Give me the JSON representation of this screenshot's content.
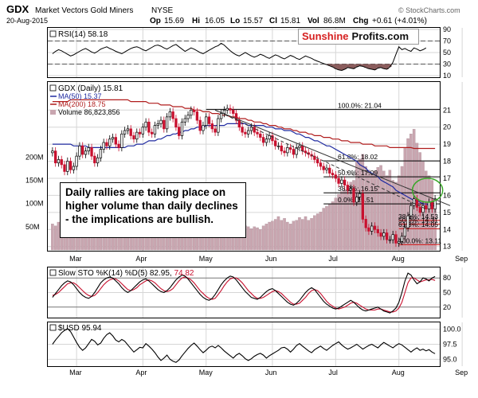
{
  "chart_data": {
    "type": "candlestick",
    "header": {
      "symbol": "GDX",
      "name": "Market Vectors Gold Miners",
      "exchange": "NYSE",
      "date": "20-Aug-2015",
      "open_label": "Op",
      "open": "15.69",
      "high_label": "Hi",
      "high": "16.05",
      "low_label": "Lo",
      "low": "15.57",
      "close_label": "Cl",
      "close": "15.81",
      "volume_label": "Vol",
      "volume": "86.8M",
      "change_label": "Chg",
      "change": "+0.61 (+4.01%)",
      "watermark": "© StockCharts.com"
    },
    "brand": {
      "part1": "Sunshine",
      "part2": "Profits.com"
    },
    "annotation": "Daily rallies are taking place on higher volume than daily declines - the implications are bullish.",
    "x_axis": {
      "months": [
        "Mar",
        "Apr",
        "May",
        "Jun",
        "Jul",
        "Aug",
        "Sep"
      ],
      "month_index": [
        8,
        30,
        51,
        73,
        94,
        115,
        136
      ]
    },
    "rsi": {
      "legend": "RSI(14) 58.18",
      "ylim": [
        10,
        90
      ],
      "ticks": [
        90,
        70,
        50,
        30,
        10
      ],
      "levels": [
        70,
        30
      ],
      "values": [
        48,
        52,
        55,
        53,
        50,
        47,
        44,
        46,
        49,
        52,
        55,
        57,
        54,
        51,
        49,
        52,
        56,
        58,
        60,
        57,
        55,
        52,
        50,
        48,
        51,
        54,
        57,
        59,
        60,
        58,
        55,
        53,
        56,
        59,
        62,
        63,
        61,
        58,
        56,
        59,
        62,
        64,
        60,
        56,
        52,
        55,
        58,
        56,
        53,
        50,
        48,
        51,
        54,
        57,
        60,
        62,
        66,
        63,
        58,
        53,
        49,
        46,
        44,
        47,
        50,
        47,
        44,
        42,
        44,
        47,
        45,
        42,
        40,
        43,
        46,
        44,
        41,
        39,
        42,
        45,
        43,
        40,
        38,
        41,
        44,
        42,
        40,
        37,
        35,
        33,
        31,
        29,
        27,
        25,
        22,
        20,
        19,
        21,
        24,
        23,
        22,
        25,
        27,
        26,
        24,
        22,
        21,
        20,
        23,
        24,
        22,
        21,
        25,
        33,
        47,
        60,
        55,
        57,
        54,
        52,
        58,
        56,
        53,
        55,
        58
      ]
    },
    "price": {
      "legend": "GDX (Daily) 15.81",
      "ma50_label": "MA(50) 15.37",
      "ma200_label": "MA(200) 18.75",
      "volume_label": "Volume 86,823,856",
      "ylim": [
        12.8,
        22.6
      ],
      "ticks": [
        21,
        20,
        19,
        18,
        17,
        16,
        15,
        14,
        13
      ],
      "volume_ticks": [
        {
          "v": 200,
          "label": "200M"
        },
        {
          "v": 150,
          "label": "150M"
        },
        {
          "v": 100,
          "label": "100M"
        },
        {
          "v": 50,
          "label": "50M"
        }
      ],
      "volume_max": 360,
      "close": [
        18.6,
        17.9,
        18.1,
        17.8,
        17.4,
        18.0,
        17.5,
        17.7,
        18.3,
        18.9,
        18.4,
        18.6,
        18.8,
        18.3,
        17.9,
        18.2,
        18.7,
        19.1,
        18.9,
        19.3,
        19.4,
        19.0,
        18.8,
        19.6,
        19.8,
        19.9,
        19.5,
        19.3,
        19.7,
        19.6,
        20.0,
        20.3,
        19.7,
        19.6,
        20.1,
        20.2,
        20.4,
        19.9,
        20.6,
        20.9,
        20.5,
        20.0,
        19.5,
        20.3,
        20.5,
        20.7,
        21.0,
        20.9,
        20.4,
        19.8,
        20.1,
        20.6,
        20.2,
        19.9,
        19.7,
        20.5,
        20.8,
        21.0,
        21.1,
        21.0,
        20.8,
        20.4,
        20.0,
        19.7,
        19.6,
        19.8,
        20.0,
        19.7,
        19.6,
        19.4,
        19.1,
        19.3,
        19.5,
        19.2,
        18.9,
        18.9,
        18.6,
        18.5,
        18.8,
        18.7,
        18.4,
        18.8,
        18.9,
        18.6,
        18.5,
        18.4,
        18.3,
        18.1,
        17.9,
        17.7,
        17.5,
        17.6,
        17.3,
        17.2,
        17.0,
        16.7,
        16.9,
        16.6,
        16.3,
        16.4,
        15.6,
        15.9,
        16.1,
        14.6,
        14.1,
        13.9,
        14.2,
        14.0,
        13.8,
        13.6,
        13.8,
        13.4,
        13.4,
        13.7,
        13.2,
        13.3,
        13.6,
        14.1,
        14.8,
        15.4,
        15.8,
        15.3,
        15.0,
        15.4,
        15.2,
        15.6,
        15.2,
        15.8
      ],
      "volume": [
        56,
        52,
        60,
        70,
        58,
        54,
        62,
        48,
        50,
        64,
        57,
        58,
        52,
        56,
        60,
        50,
        54,
        48,
        58,
        52,
        50,
        54,
        52,
        44,
        48,
        50,
        46,
        42,
        56,
        50,
        48,
        52,
        56,
        44,
        48,
        46,
        50,
        42,
        58,
        60,
        66,
        56,
        50,
        52,
        50,
        48,
        46,
        52,
        48,
        56,
        50,
        44,
        48,
        50,
        46,
        54,
        52,
        50,
        48,
        46,
        44,
        48,
        58,
        56,
        52,
        50,
        46,
        50,
        48,
        44,
        52,
        56,
        60,
        62,
        66,
        72,
        64,
        68,
        60,
        56,
        62,
        64,
        70,
        66,
        72,
        64,
        68,
        74,
        78,
        82,
        90,
        94,
        98,
        104,
        112,
        120,
        126,
        130,
        138,
        146,
        150,
        190,
        196,
        206,
        180,
        172,
        164,
        170,
        178,
        182,
        170,
        160,
        172,
        150,
        146,
        160,
        180,
        220,
        240,
        250,
        260,
        230,
        210,
        190,
        170,
        160,
        150,
        87
      ],
      "ma50": [
        19.0,
        19.0,
        19.0,
        19.0,
        19.0,
        19.0,
        19.0,
        18.9,
        18.9,
        18.9,
        18.9,
        18.9,
        18.8,
        18.8,
        18.8,
        18.8,
        18.8,
        18.8,
        18.8,
        18.8,
        18.8,
        18.8,
        18.8,
        18.8,
        18.8,
        18.9,
        18.9,
        18.9,
        19.0,
        19.0,
        19.0,
        19.1,
        19.2,
        19.2,
        19.2,
        19.3,
        19.3,
        19.4,
        19.5,
        19.5,
        19.6,
        19.6,
        19.7,
        19.7,
        19.8,
        19.8,
        19.9,
        19.9,
        20.0,
        20.0,
        20.0,
        20.1,
        20.1,
        20.1,
        20.1,
        20.1,
        20.1,
        20.1,
        20.2,
        20.2,
        20.2,
        20.2,
        20.2,
        20.2,
        20.2,
        20.1,
        20.1,
        20.1,
        20.1,
        20.1,
        20.1,
        20.0,
        20.0,
        20.0,
        19.9,
        19.9,
        19.9,
        19.8,
        19.8,
        19.8,
        19.7,
        19.6,
        19.6,
        19.5,
        19.4,
        19.4,
        19.3,
        19.2,
        19.2,
        19.1,
        19.0,
        18.9,
        18.9,
        18.8,
        18.7,
        18.6,
        18.5,
        18.4,
        18.3,
        18.2,
        18.1,
        18.0,
        17.8,
        17.7,
        17.6,
        17.4,
        17.3,
        17.2,
        17.1,
        16.9,
        16.8,
        16.7,
        16.6,
        16.5,
        16.3,
        16.2,
        16.1,
        16.0,
        15.9,
        15.8,
        15.7,
        15.7,
        15.6,
        15.5,
        15.5,
        15.4,
        15.4,
        15.37
      ],
      "ma200": [
        21.5,
        21.5,
        21.5,
        21.5,
        21.5,
        21.5,
        21.6,
        21.6,
        21.6,
        21.6,
        21.6,
        21.6,
        21.6,
        21.6,
        21.6,
        21.6,
        21.6,
        21.6,
        21.6,
        21.6,
        21.6,
        21.6,
        21.6,
        21.6,
        21.6,
        21.6,
        21.5,
        21.5,
        21.5,
        21.5,
        21.5,
        21.5,
        21.4,
        21.4,
        21.4,
        21.4,
        21.3,
        21.3,
        21.3,
        21.3,
        21.2,
        21.2,
        21.2,
        21.2,
        21.1,
        21.1,
        21.1,
        21.0,
        21.0,
        21.0,
        20.9,
        20.9,
        20.9,
        20.8,
        20.8,
        20.8,
        20.7,
        20.7,
        20.7,
        20.6,
        20.6,
        20.6,
        20.5,
        20.5,
        20.5,
        20.4,
        20.4,
        20.3,
        20.3,
        20.3,
        20.2,
        20.2,
        20.1,
        20.1,
        20.1,
        20.0,
        20.0,
        19.9,
        19.9,
        19.9,
        19.8,
        19.8,
        19.7,
        19.7,
        19.7,
        19.6,
        19.6,
        19.5,
        19.5,
        19.5,
        19.4,
        19.4,
        19.4,
        19.3,
        19.3,
        19.3,
        19.2,
        19.2,
        19.2,
        19.1,
        19.1,
        19.1,
        19.1,
        19.0,
        19.0,
        19.0,
        19.0,
        18.9,
        18.9,
        18.9,
        18.9,
        18.9,
        18.8,
        18.8,
        18.8,
        18.8,
        18.8,
        18.8,
        18.8,
        18.8,
        18.75,
        18.75,
        18.75,
        18.75,
        18.75,
        18.75,
        18.75,
        18.75
      ],
      "fib_levels": [
        {
          "value": 21.04,
          "label": "100.0%: 21.04",
          "x_start": 51
        },
        {
          "value": 18.02,
          "label": "61.8%: 18.02",
          "x_start": 90
        },
        {
          "value": 17.09,
          "label": "50.0%: 17.09",
          "x_start": 90
        },
        {
          "value": 16.15,
          "label": "38.2%: 16.15",
          "x_start": 90
        },
        {
          "value": 15.5,
          "label": "0.0%: 15.51",
          "x_start": 90
        },
        {
          "value": 14.53,
          "label": "38.2%: 14.53",
          "x_start": 115
        },
        {
          "value": 14.31,
          "label": "50.0%: 14.31",
          "x_start": 115
        },
        {
          "value": 14.05,
          "label": "61.8%: 14.05",
          "x_start": 115
        },
        {
          "value": 13.11,
          "label": "100.0%: 13.11",
          "x_start": 115
        }
      ],
      "trend_lines": [
        {
          "from": [
            54,
            21.0
          ],
          "to": [
            132,
            15.4
          ],
          "style": "solid"
        },
        {
          "from": [
            54,
            21.0
          ],
          "to": [
            124,
            15.2
          ],
          "style": "dashed"
        }
      ],
      "highlight_circle": {
        "x": 124.5,
        "y": 16.3
      }
    },
    "stoch": {
      "legend_prefix": "Slow STO %K(14) %D(5)",
      "k_label": "82.95",
      "d_label": "74.82",
      "ylim": [
        0,
        100
      ],
      "ticks": [
        80,
        50,
        20
      ],
      "k": [
        40,
        48,
        56,
        64,
        70,
        74,
        72,
        66,
        58,
        50,
        44,
        40,
        38,
        42,
        50,
        60,
        70,
        76,
        80,
        82,
        80,
        74,
        68,
        60,
        54,
        50,
        54,
        60,
        66,
        72,
        76,
        78,
        74,
        68,
        62,
        56,
        52,
        50,
        54,
        60,
        68,
        76,
        82,
        86,
        84,
        78,
        70,
        62,
        54,
        46,
        40,
        36,
        34,
        38,
        46,
        56,
        66,
        74,
        80,
        84,
        82,
        76,
        68,
        60,
        52,
        46,
        40,
        38,
        36,
        40,
        46,
        52,
        56,
        58,
        54,
        48,
        42,
        36,
        30,
        26,
        24,
        28,
        34,
        42,
        50,
        56,
        60,
        56,
        48,
        40,
        32,
        26,
        22,
        18,
        16,
        18,
        22,
        26,
        30,
        34,
        30,
        24,
        18,
        14,
        12,
        14,
        16,
        18,
        20,
        16,
        12,
        10,
        8,
        12,
        18,
        30,
        50,
        74,
        90,
        86,
        76,
        68,
        72,
        80,
        78,
        74,
        80,
        83
      ],
      "d": [
        44,
        46,
        50,
        56,
        62,
        68,
        70,
        70,
        66,
        60,
        54,
        48,
        44,
        42,
        44,
        50,
        58,
        66,
        72,
        76,
        78,
        78,
        74,
        68,
        62,
        56,
        54,
        56,
        60,
        66,
        70,
        74,
        76,
        74,
        70,
        64,
        58,
        54,
        52,
        54,
        58,
        66,
        74,
        80,
        82,
        80,
        76,
        70,
        62,
        54,
        48,
        42,
        38,
        36,
        38,
        46,
        54,
        64,
        72,
        78,
        80,
        80,
        76,
        70,
        62,
        54,
        48,
        42,
        38,
        38,
        40,
        44,
        48,
        52,
        54,
        52,
        48,
        42,
        36,
        30,
        26,
        26,
        28,
        34,
        40,
        48,
        54,
        56,
        54,
        48,
        40,
        32,
        26,
        22,
        18,
        16,
        18,
        20,
        24,
        28,
        30,
        28,
        24,
        20,
        16,
        14,
        14,
        14,
        16,
        16,
        14,
        12,
        10,
        10,
        12,
        18,
        30,
        50,
        70,
        80,
        80,
        76,
        72,
        74,
        76,
        76,
        77,
        75
      ]
    },
    "usd": {
      "legend": "$USD 95.94",
      "ylim": [
        94.0,
        101.0
      ],
      "ticks": [
        {
          "v": 100.0,
          "label": "100.0"
        },
        {
          "v": 97.5,
          "label": "97.5"
        },
        {
          "v": 95.0,
          "label": "95.0"
        }
      ],
      "values": [
        97.5,
        98.2,
        98.8,
        99.4,
        99.8,
        100.1,
        99.6,
        98.7,
        97.8,
        97.0,
        96.5,
        96.9,
        97.6,
        98.3,
        98.0,
        97.4,
        97.7,
        98.5,
        99.1,
        99.4,
        98.9,
        98.2,
        97.9,
        98.3,
        98.0,
        97.4,
        96.8,
        96.2,
        96.6,
        97.0,
        96.9,
        97.6,
        97.2,
        96.7,
        96.1,
        95.4,
        94.8,
        95.2,
        95.7,
        95.0,
        94.7,
        94.5,
        94.9,
        95.6,
        96.2,
        96.8,
        97.3,
        97.7,
        97.2,
        96.6,
        96.1,
        96.5,
        97.0,
        97.2,
        96.9,
        97.3,
        96.9,
        96.4,
        96.0,
        95.6,
        95.2,
        95.7,
        96.0,
        95.6,
        95.1,
        94.8,
        95.1,
        95.5,
        95.8,
        96.0,
        95.7,
        95.2,
        95.6,
        95.9,
        96.2,
        96.5,
        96.9,
        97.0,
        96.7,
        96.2,
        96.7,
        97.3,
        97.6,
        97.2,
        96.8,
        96.4,
        96.1,
        96.6,
        96.9,
        97.2,
        96.8,
        96.5,
        96.9,
        97.3,
        97.6,
        97.9,
        97.4,
        97.0,
        96.7,
        96.9,
        97.2,
        97.5,
        97.1,
        96.7,
        97.0,
        97.3,
        97.5,
        97.2,
        96.9,
        97.4,
        97.8,
        97.5,
        97.2,
        96.9,
        97.3,
        97.6,
        97.4,
        97.0,
        96.6,
        96.2,
        96.6,
        96.9,
        96.5,
        96.7,
        96.4,
        96.6,
        96.2,
        95.94
      ]
    }
  },
  "colors": {
    "up": "#000000",
    "down": "#c8102e",
    "ma50": "#1f2aa0",
    "ma200": "#b01c1c",
    "volume": "#c9a6b0",
    "grid": "#d6d6d6",
    "rsi_fill_up": "#4a6fa5",
    "rsi_fill_down": "#8a5c5c",
    "fib": "#000000",
    "fib_low": "#cc1111",
    "circle": "#3aa82a"
  }
}
